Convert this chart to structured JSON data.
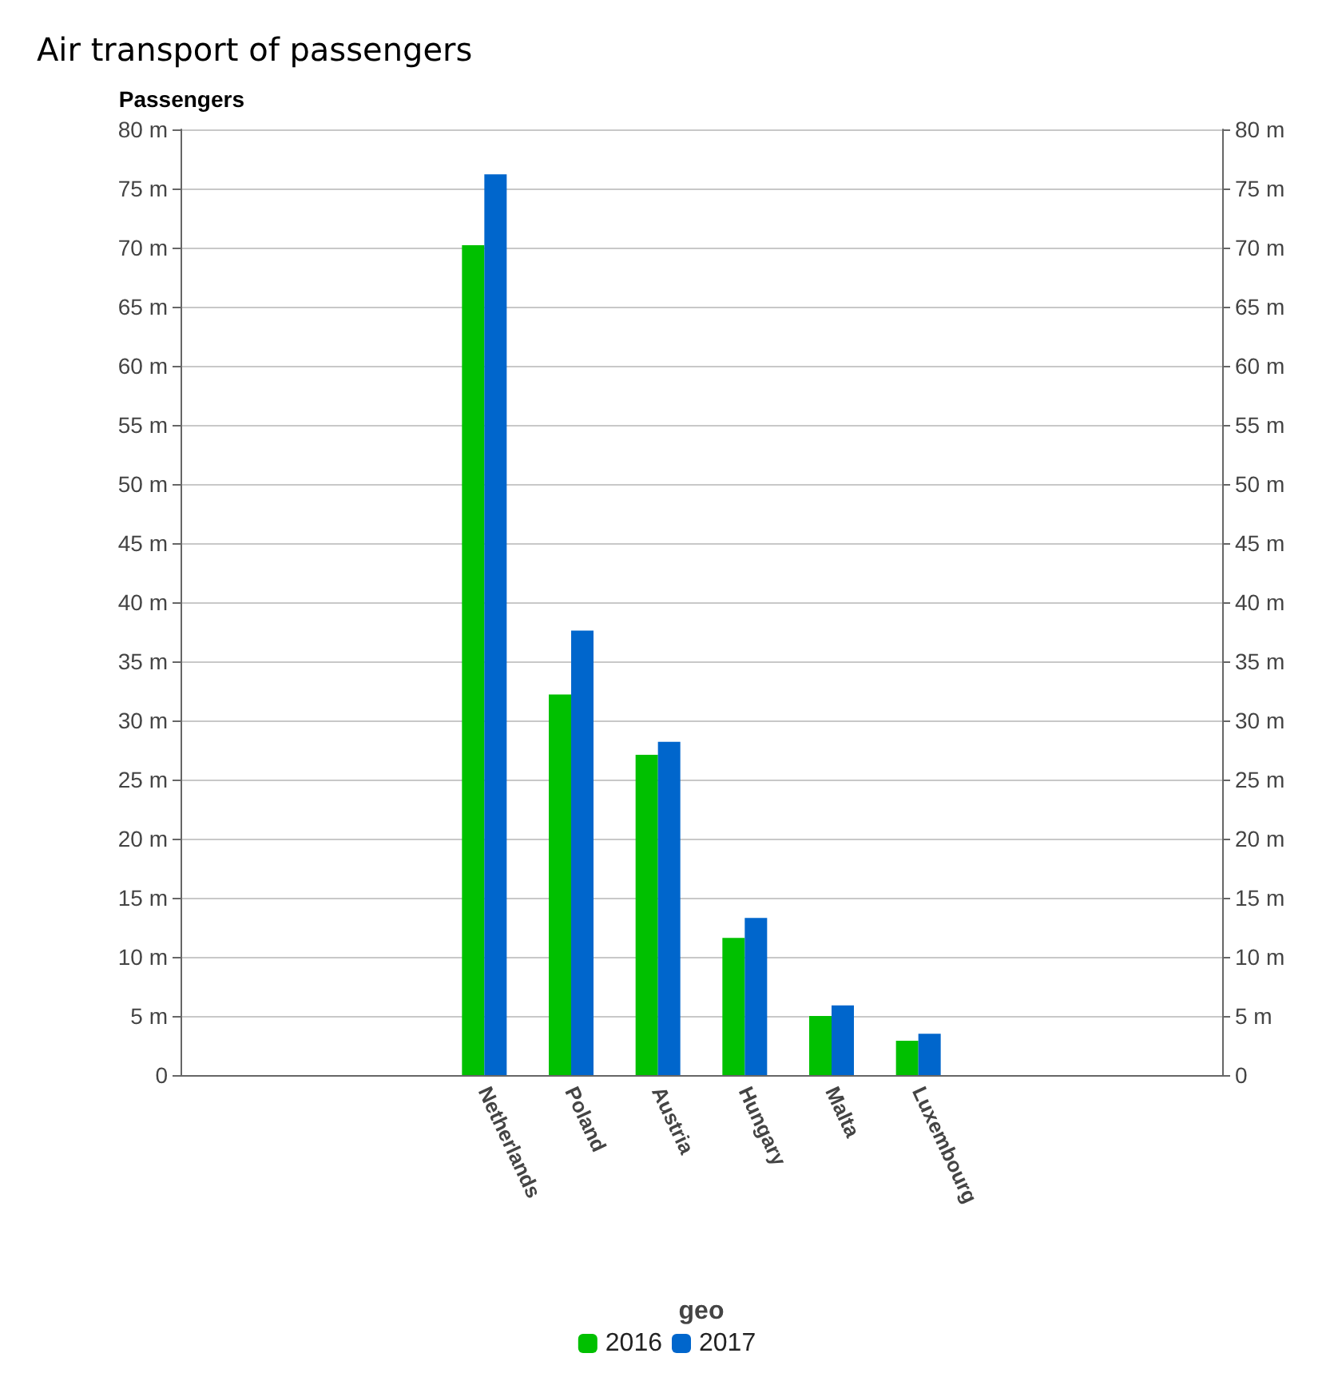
{
  "chart_data": {
    "type": "bar",
    "title": "Air transport of passengers",
    "ylabel": "Passengers",
    "xlabel": "geo",
    "categories": [
      null,
      null,
      null,
      "Netherlands",
      "Poland",
      "Austria",
      "Hungary",
      "Malta",
      "Luxembourg",
      null,
      null,
      null
    ],
    "series": [
      {
        "name": "2016",
        "color": "#00c000",
        "values": [
          null,
          null,
          null,
          70.2,
          32.2,
          27.1,
          11.6,
          5.0,
          2.9,
          null,
          null,
          null
        ]
      },
      {
        "name": "2017",
        "color": "#0066cc",
        "values": [
          null,
          null,
          null,
          76.2,
          37.6,
          28.2,
          13.3,
          5.9,
          3.5,
          null,
          null,
          null
        ]
      }
    ],
    "ylim": [
      0,
      80
    ],
    "yticks": [
      {
        "value": 0,
        "label": "0"
      },
      {
        "value": 5,
        "label": "5 m"
      },
      {
        "value": 10,
        "label": "10 m"
      },
      {
        "value": 15,
        "label": "15 m"
      },
      {
        "value": 20,
        "label": "20 m"
      },
      {
        "value": 25,
        "label": "25 m"
      },
      {
        "value": 30,
        "label": "30 m"
      },
      {
        "value": 35,
        "label": "35 m"
      },
      {
        "value": 40,
        "label": "40 m"
      },
      {
        "value": 45,
        "label": "45 m"
      },
      {
        "value": 50,
        "label": "50 m"
      },
      {
        "value": 55,
        "label": "55 m"
      },
      {
        "value": 60,
        "label": "60 m"
      },
      {
        "value": 65,
        "label": "65 m"
      },
      {
        "value": 70,
        "label": "70 m"
      },
      {
        "value": 75,
        "label": "75 m"
      },
      {
        "value": 80,
        "label": "80 m"
      }
    ],
    "y2lim": [
      0,
      80
    ],
    "y2ticks": [
      {
        "value": 0,
        "label": "0"
      },
      {
        "value": 5,
        "label": "5 m"
      },
      {
        "value": 10,
        "label": "10 m"
      },
      {
        "value": 15,
        "label": "15 m"
      },
      {
        "value": 20,
        "label": "20 m"
      },
      {
        "value": 25,
        "label": "25 m"
      },
      {
        "value": 30,
        "label": "30 m"
      },
      {
        "value": 35,
        "label": "35 m"
      },
      {
        "value": 40,
        "label": "40 m"
      },
      {
        "value": 45,
        "label": "45 m"
      },
      {
        "value": 50,
        "label": "50 m"
      },
      {
        "value": 55,
        "label": "55 m"
      },
      {
        "value": 60,
        "label": "60 m"
      },
      {
        "value": 65,
        "label": "65 m"
      },
      {
        "value": 70,
        "label": "70 m"
      },
      {
        "value": 75,
        "label": "75 m"
      },
      {
        "value": 80,
        "label": "80 m"
      }
    ],
    "grid": "y",
    "legend": "bottom"
  }
}
